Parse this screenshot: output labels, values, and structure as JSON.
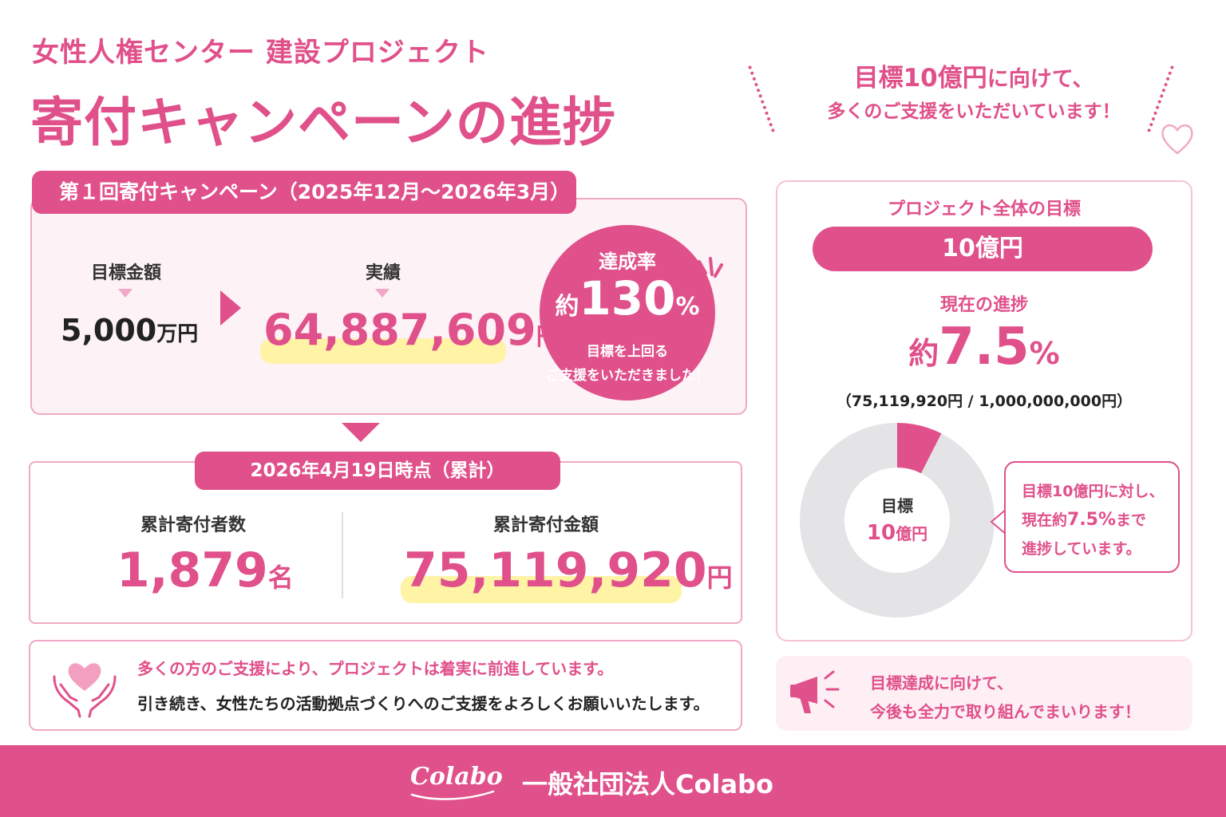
{
  "header": {
    "subtitle": "女性人権センター 建設プロジェクト",
    "title": "寄付キャンペーンの進捗"
  },
  "top_message": {
    "line1_em": "目標10億円",
    "line1_rest": "に向けて、",
    "line2": "多くのご支援をいただいています！"
  },
  "campaign1": {
    "tab": "第１回寄付キャンペーン（2025年12月〜2026年3月）",
    "goal_label": "目標金額",
    "goal_value": "5,000",
    "goal_unit": "万円",
    "actual_label": "実績",
    "actual_value": "64,887,609",
    "actual_unit": "円",
    "rate_label": "達成率",
    "rate_prefix": "約",
    "rate_value": "130",
    "rate_suffix": "%",
    "rate_note1": "目標を上回る",
    "rate_note2": "ご支援をいただきました！"
  },
  "cumulative": {
    "tab": "2026年4月19日時点（累計）",
    "donors_label": "累計寄付者数",
    "donors_value": "1,879",
    "donors_unit": "名",
    "amount_label": "累計寄付金額",
    "amount_value": "75,119,920",
    "amount_unit": "円"
  },
  "message": {
    "line1": "多くの方のご支援により、プロジェクトは着実に前進しています。",
    "line2": "引き続き、女性たちの活動拠点づくりへのご支援をよろしくお願いいたします。"
  },
  "project": {
    "title": "プロジェクト全体の目標",
    "goal": "10億円",
    "progress_label": "現在の進捗",
    "progress_prefix": "約",
    "progress_value": "7.5",
    "progress_suffix": "%",
    "detail": "（75,119,920円 / 1,000,000,000円）",
    "progress_fraction": 0.075,
    "donut_center_label": "目標",
    "donut_center_value": "10",
    "donut_center_unit": "億円",
    "bubble_line1": "目標10億円に対し、",
    "bubble_line2_a": "現在約",
    "bubble_line2_b": "7.5%",
    "bubble_line2_c": "まで",
    "bubble_line3": "進捗しています。"
  },
  "note": {
    "line1": "目標達成に向けて、",
    "line2": "今後も全力で取り組んでまいります！"
  },
  "footer": {
    "logo": "Colabo",
    "org": "一般社団法人Colabo"
  },
  "colors": {
    "accent": "#e0508a",
    "light_pink": "#fdf2f6",
    "highlight": "#fff3a6",
    "donut_rest": "#e4e4e6"
  }
}
